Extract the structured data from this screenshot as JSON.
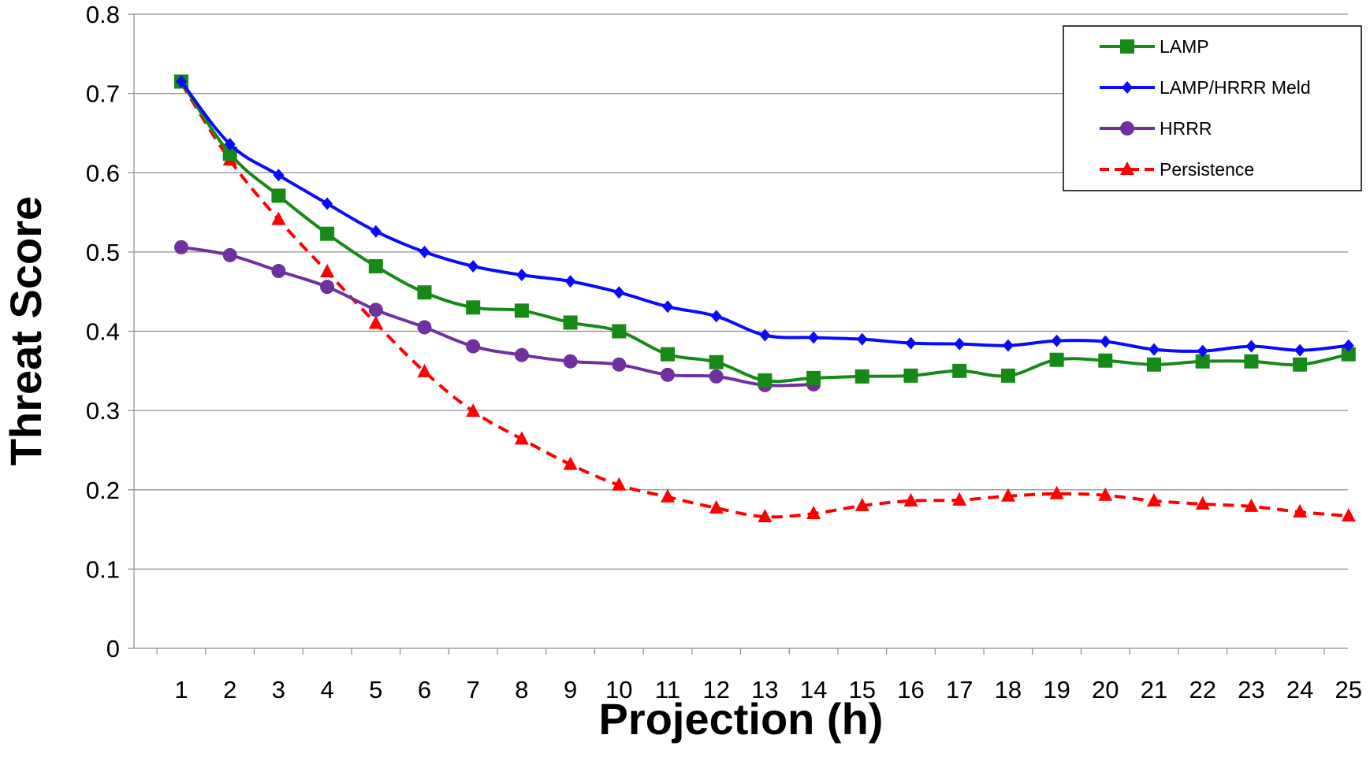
{
  "chart_data": {
    "type": "line",
    "title": "",
    "xlabel": "Projection (h)",
    "ylabel": "Threat Score",
    "ylim": [
      0,
      0.8
    ],
    "yticks": [
      "0",
      "0.1",
      "0.2",
      "0.3",
      "0.4",
      "0.5",
      "0.6",
      "0.7",
      "0.8"
    ],
    "x": [
      1,
      2,
      3,
      4,
      5,
      6,
      7,
      8,
      9,
      10,
      11,
      12,
      13,
      14,
      15,
      16,
      17,
      18,
      19,
      20,
      21,
      22,
      23,
      24,
      25
    ],
    "grid": "horizontal",
    "legend_position": "top-right",
    "series": [
      {
        "name": "LAMP",
        "color": "#168a16",
        "marker": "square",
        "dash": "solid",
        "values": [
          0.715,
          0.624,
          0.571,
          0.523,
          0.482,
          0.449,
          0.43,
          0.426,
          0.411,
          0.4,
          0.371,
          0.361,
          0.338,
          0.341,
          0.343,
          0.344,
          0.35,
          0.344,
          0.364,
          0.363,
          0.358,
          0.362,
          0.362,
          0.358,
          0.371
        ]
      },
      {
        "name": "LAMP/HRRR Meld",
        "color": "#0a0aff",
        "marker": "diamond",
        "dash": "solid",
        "values": [
          0.715,
          0.636,
          0.597,
          0.561,
          0.526,
          0.5,
          0.482,
          0.471,
          0.463,
          0.449,
          0.431,
          0.419,
          0.395,
          0.392,
          0.39,
          0.385,
          0.384,
          0.382,
          0.388,
          0.387,
          0.377,
          0.375,
          0.381,
          0.376,
          0.382
        ]
      },
      {
        "name": "HRRR",
        "color": "#7030a0",
        "marker": "circle",
        "dash": "solid",
        "values": [
          0.506,
          0.496,
          0.476,
          0.456,
          0.427,
          0.405,
          0.381,
          0.37,
          0.362,
          0.358,
          0.345,
          0.343,
          0.332,
          0.333,
          null,
          null,
          null,
          null,
          null,
          null,
          null,
          null,
          null,
          null,
          null
        ]
      },
      {
        "name": "Persistence",
        "color": "#ff0000",
        "marker": "triangle",
        "dash": "dashed",
        "values": [
          0.713,
          0.616,
          0.541,
          0.475,
          0.41,
          0.349,
          0.299,
          0.264,
          0.232,
          0.206,
          0.191,
          0.177,
          0.166,
          0.17,
          0.18,
          0.186,
          0.187,
          0.192,
          0.195,
          0.193,
          0.186,
          0.182,
          0.179,
          0.172,
          0.167
        ]
      }
    ]
  }
}
